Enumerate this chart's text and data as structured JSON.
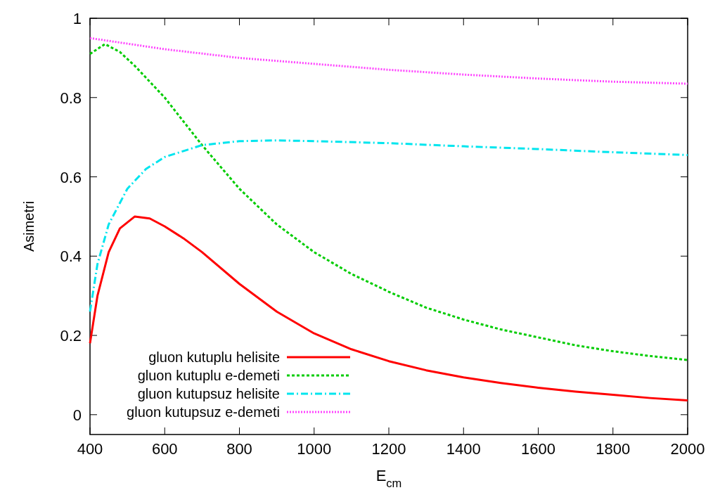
{
  "chart_data": {
    "type": "line",
    "xlabel": "E$_{cm}$",
    "ylabel": "Asimetri",
    "xlim": [
      400,
      2000
    ],
    "xticks": [
      400,
      600,
      800,
      1000,
      1200,
      1400,
      1600,
      1800,
      2000
    ],
    "ylim": [
      -0.05,
      1
    ],
    "yticks": [
      0,
      0.2,
      0.4,
      0.6,
      0.8,
      1
    ],
    "grid": false,
    "legend": "bottom left",
    "series": [
      {
        "name": "gluon kutuplu helisite",
        "color": "#ff0000",
        "line_style": "solid",
        "x": [
          400,
          420,
          450,
          480,
          520,
          560,
          600,
          650,
          700,
          800,
          900,
          1000,
          1100,
          1200,
          1300,
          1400,
          1500,
          1600,
          1700,
          1800,
          1900,
          2000
        ],
        "values": [
          0.18,
          0.3,
          0.41,
          0.47,
          0.5,
          0.495,
          0.475,
          0.445,
          0.41,
          0.33,
          0.26,
          0.205,
          0.165,
          0.135,
          0.112,
          0.094,
          0.08,
          0.068,
          0.058,
          0.05,
          0.042,
          0.036
        ]
      },
      {
        "name": "gluon kutuplu e-demeti",
        "color": "#00cc00",
        "line_style": "dashed",
        "x": [
          400,
          440,
          480,
          520,
          600,
          700,
          800,
          900,
          1000,
          1100,
          1200,
          1300,
          1400,
          1500,
          1600,
          1700,
          1800,
          1900,
          2000
        ],
        "values": [
          0.91,
          0.935,
          0.915,
          0.88,
          0.8,
          0.68,
          0.57,
          0.48,
          0.41,
          0.355,
          0.31,
          0.27,
          0.24,
          0.215,
          0.195,
          0.175,
          0.16,
          0.148,
          0.138
        ]
      },
      {
        "name": "gluon kutupsuz helisite",
        "color": "#00e5ee",
        "line_style": "dashdot",
        "x": [
          400,
          420,
          450,
          500,
          550,
          600,
          700,
          800,
          900,
          1000,
          1200,
          1400,
          1600,
          1800,
          2000
        ],
        "values": [
          0.26,
          0.38,
          0.48,
          0.57,
          0.62,
          0.65,
          0.68,
          0.69,
          0.692,
          0.69,
          0.685,
          0.677,
          0.67,
          0.662,
          0.655
        ]
      },
      {
        "name": "gluon kutupsuz e-demeti",
        "color": "#ff44ff",
        "line_style": "dotted",
        "x": [
          400,
          600,
          800,
          1000,
          1200,
          1400,
          1600,
          1800,
          2000
        ],
        "values": [
          0.95,
          0.922,
          0.9,
          0.885,
          0.87,
          0.858,
          0.848,
          0.84,
          0.835
        ]
      }
    ]
  }
}
